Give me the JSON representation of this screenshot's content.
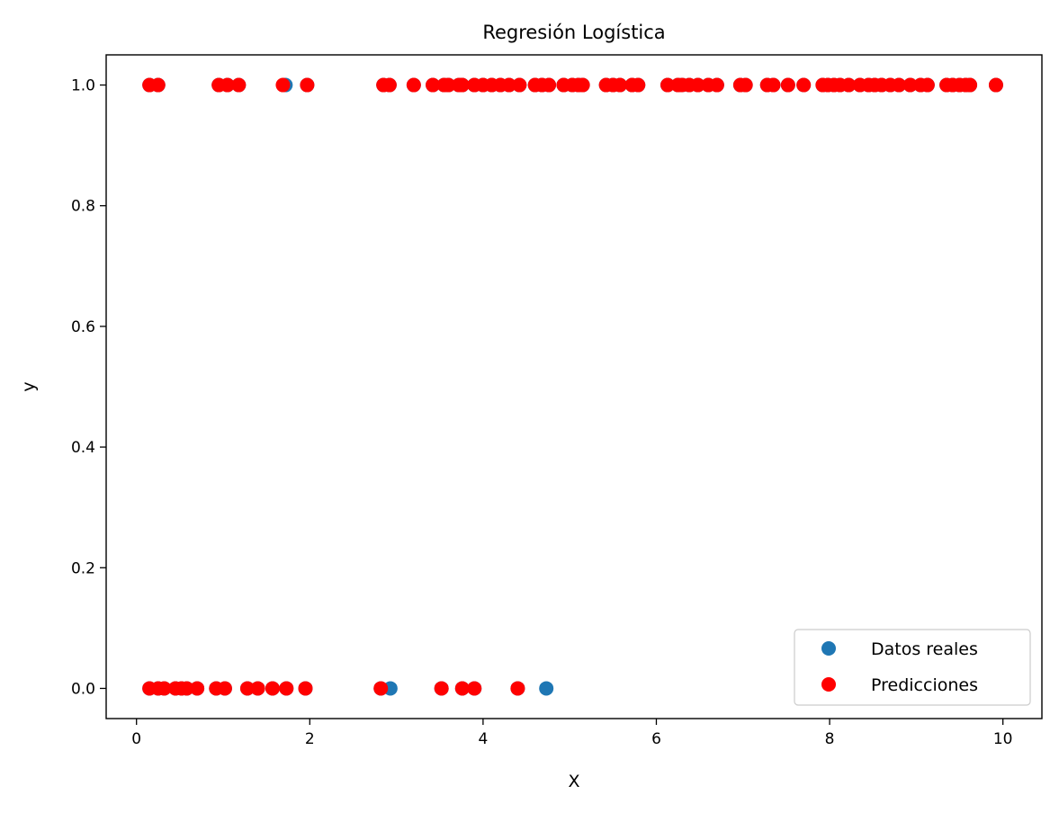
{
  "chart_data": {
    "type": "scatter",
    "title": "Regresión Logística",
    "xlabel": "X",
    "ylabel": "y",
    "xlim": [
      -0.35,
      10.45
    ],
    "ylim": [
      -0.05,
      1.05
    ],
    "xticks": [
      0,
      2,
      4,
      6,
      8,
      10
    ],
    "xtick_labels": [
      "0",
      "2",
      "4",
      "6",
      "8",
      "10"
    ],
    "yticks": [
      0.0,
      0.2,
      0.4,
      0.6,
      0.8,
      1.0
    ],
    "ytick_labels": [
      "0.0",
      "0.2",
      "0.4",
      "0.6",
      "0.8",
      "1.0"
    ],
    "grid": false,
    "legend_position": "lower-right",
    "series": [
      {
        "name": "Datos reales",
        "color": "#1f77b4",
        "points": [
          [
            0.15,
            1
          ],
          [
            0.25,
            1
          ],
          [
            0.95,
            1
          ],
          [
            1.05,
            1
          ],
          [
            1.18,
            1
          ],
          [
            1.72,
            1
          ],
          [
            1.97,
            1
          ],
          [
            2.85,
            1
          ],
          [
            2.92,
            1
          ],
          [
            3.2,
            1
          ],
          [
            3.42,
            1
          ],
          [
            3.55,
            1
          ],
          [
            3.6,
            1
          ],
          [
            3.72,
            1
          ],
          [
            3.76,
            1
          ],
          [
            3.9,
            1
          ],
          [
            4.0,
            1
          ],
          [
            4.1,
            1
          ],
          [
            4.2,
            1
          ],
          [
            4.3,
            1
          ],
          [
            4.42,
            1
          ],
          [
            4.6,
            1
          ],
          [
            4.68,
            1
          ],
          [
            4.76,
            1
          ],
          [
            4.93,
            1
          ],
          [
            5.03,
            1
          ],
          [
            5.1,
            1
          ],
          [
            5.15,
            1
          ],
          [
            5.42,
            1
          ],
          [
            5.5,
            1
          ],
          [
            5.58,
            1
          ],
          [
            5.72,
            1
          ],
          [
            5.79,
            1
          ],
          [
            6.13,
            1
          ],
          [
            6.25,
            1
          ],
          [
            6.3,
            1
          ],
          [
            6.38,
            1
          ],
          [
            6.48,
            1
          ],
          [
            6.6,
            1
          ],
          [
            6.7,
            1
          ],
          [
            6.97,
            1
          ],
          [
            7.03,
            1
          ],
          [
            7.28,
            1
          ],
          [
            7.35,
            1
          ],
          [
            7.52,
            1
          ],
          [
            7.7,
            1
          ],
          [
            7.92,
            1
          ],
          [
            7.98,
            1
          ],
          [
            8.05,
            1
          ],
          [
            8.12,
            1
          ],
          [
            8.22,
            1
          ],
          [
            8.35,
            1
          ],
          [
            8.45,
            1
          ],
          [
            8.52,
            1
          ],
          [
            8.6,
            1
          ],
          [
            8.7,
            1
          ],
          [
            8.8,
            1
          ],
          [
            8.93,
            1
          ],
          [
            9.05,
            1
          ],
          [
            9.13,
            1
          ],
          [
            9.35,
            1
          ],
          [
            9.42,
            1
          ],
          [
            9.5,
            1
          ],
          [
            9.57,
            1
          ],
          [
            9.62,
            1
          ],
          [
            9.92,
            1
          ],
          [
            0.15,
            0
          ],
          [
            0.25,
            0
          ],
          [
            0.32,
            0
          ],
          [
            0.45,
            0
          ],
          [
            0.52,
            0
          ],
          [
            0.58,
            0
          ],
          [
            0.7,
            0
          ],
          [
            0.92,
            0
          ],
          [
            1.02,
            0
          ],
          [
            1.28,
            0
          ],
          [
            1.4,
            0
          ],
          [
            1.57,
            0
          ],
          [
            1.73,
            0
          ],
          [
            1.95,
            0
          ],
          [
            2.82,
            0
          ],
          [
            2.93,
            0
          ],
          [
            3.52,
            0
          ],
          [
            3.76,
            0
          ],
          [
            3.9,
            0
          ],
          [
            4.4,
            0
          ],
          [
            4.73,
            0
          ]
        ]
      },
      {
        "name": "Predicciones",
        "color": "#ff0000",
        "points": [
          [
            0.15,
            1
          ],
          [
            0.25,
            1
          ],
          [
            0.95,
            1
          ],
          [
            1.05,
            1
          ],
          [
            1.18,
            1
          ],
          [
            1.69,
            1
          ],
          [
            1.97,
            1
          ],
          [
            2.85,
            1
          ],
          [
            2.92,
            1
          ],
          [
            3.2,
            1
          ],
          [
            3.42,
            1
          ],
          [
            3.55,
            1
          ],
          [
            3.6,
            1
          ],
          [
            3.72,
            1
          ],
          [
            3.76,
            1
          ],
          [
            3.9,
            1
          ],
          [
            4.0,
            1
          ],
          [
            4.1,
            1
          ],
          [
            4.2,
            1
          ],
          [
            4.3,
            1
          ],
          [
            4.42,
            1
          ],
          [
            4.6,
            1
          ],
          [
            4.68,
            1
          ],
          [
            4.76,
            1
          ],
          [
            4.93,
            1
          ],
          [
            5.03,
            1
          ],
          [
            5.1,
            1
          ],
          [
            5.15,
            1
          ],
          [
            5.42,
            1
          ],
          [
            5.5,
            1
          ],
          [
            5.58,
            1
          ],
          [
            5.72,
            1
          ],
          [
            5.79,
            1
          ],
          [
            6.13,
            1
          ],
          [
            6.25,
            1
          ],
          [
            6.3,
            1
          ],
          [
            6.38,
            1
          ],
          [
            6.48,
            1
          ],
          [
            6.6,
            1
          ],
          [
            6.7,
            1
          ],
          [
            6.97,
            1
          ],
          [
            7.03,
            1
          ],
          [
            7.28,
            1
          ],
          [
            7.35,
            1
          ],
          [
            7.52,
            1
          ],
          [
            7.7,
            1
          ],
          [
            7.92,
            1
          ],
          [
            7.98,
            1
          ],
          [
            8.05,
            1
          ],
          [
            8.12,
            1
          ],
          [
            8.22,
            1
          ],
          [
            8.35,
            1
          ],
          [
            8.45,
            1
          ],
          [
            8.52,
            1
          ],
          [
            8.6,
            1
          ],
          [
            8.7,
            1
          ],
          [
            8.8,
            1
          ],
          [
            8.93,
            1
          ],
          [
            9.05,
            1
          ],
          [
            9.13,
            1
          ],
          [
            9.35,
            1
          ],
          [
            9.42,
            1
          ],
          [
            9.5,
            1
          ],
          [
            9.57,
            1
          ],
          [
            9.62,
            1
          ],
          [
            9.92,
            1
          ],
          [
            0.15,
            0
          ],
          [
            0.25,
            0
          ],
          [
            0.32,
            0
          ],
          [
            0.45,
            0
          ],
          [
            0.52,
            0
          ],
          [
            0.58,
            0
          ],
          [
            0.7,
            0
          ],
          [
            0.92,
            0
          ],
          [
            1.02,
            0
          ],
          [
            1.28,
            0
          ],
          [
            1.4,
            0
          ],
          [
            1.57,
            0
          ],
          [
            1.73,
            0
          ],
          [
            1.95,
            0
          ],
          [
            2.82,
            0
          ],
          [
            3.52,
            0
          ],
          [
            3.76,
            0
          ],
          [
            3.9,
            0
          ],
          [
            4.4,
            0
          ]
        ]
      }
    ]
  }
}
